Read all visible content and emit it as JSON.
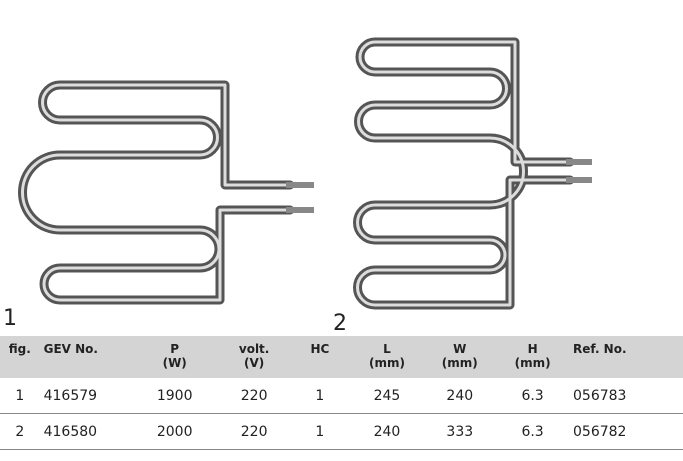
{
  "figures": [
    "1",
    "2"
  ],
  "table": {
    "header": [
      {
        "name": "fig."
      },
      {
        "name": "GEV No."
      },
      {
        "name": "P",
        "unit": "(W)"
      },
      {
        "name": "volt.",
        "unit": "(V)"
      },
      {
        "name": "HC"
      },
      {
        "name": "L",
        "unit": "(mm)"
      },
      {
        "name": "W",
        "unit": "(mm)"
      },
      {
        "name": "H",
        "unit": "(mm)"
      },
      {
        "name": "Ref. No."
      }
    ],
    "rows": [
      [
        "1",
        "416579",
        "1900",
        "220",
        "1",
        "245",
        "240",
        "6.3",
        "056783"
      ],
      [
        "2",
        "416580",
        "2000",
        "220",
        "1",
        "240",
        "333",
        "6.3",
        "056782"
      ]
    ]
  }
}
